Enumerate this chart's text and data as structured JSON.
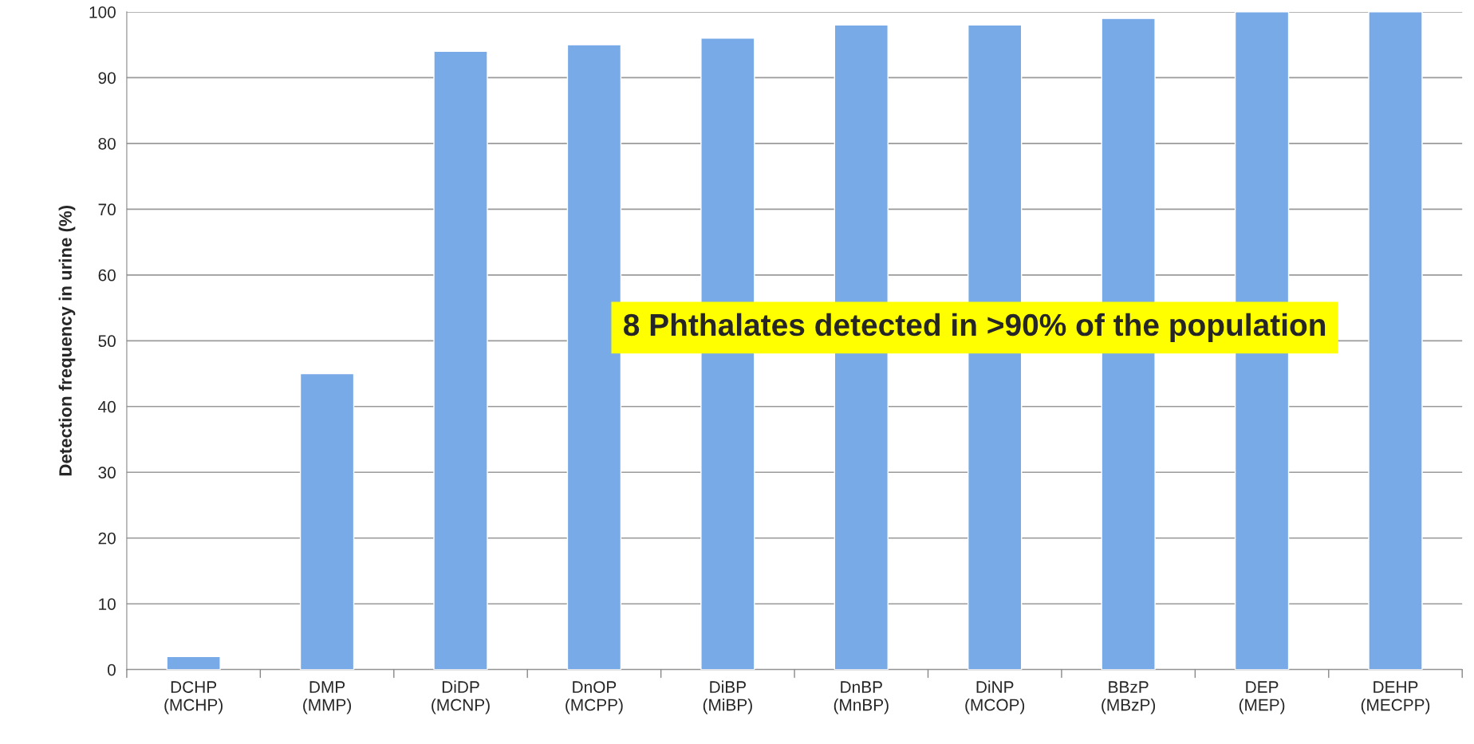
{
  "chart_data": {
    "type": "bar",
    "ylabel": "Detection frequency in urine (%)",
    "categories": [
      "DCHP\n(MCHP)",
      "DMP\n(MMP)",
      "DiDP\n(MCNP)",
      "DnOP\n(MCPP)",
      "DiBP\n(MiBP)",
      "DnBP\n(MnBP)",
      "DiNP\n(MCOP)",
      "BBzP\n(MBzP)",
      "DEP\n(MEP)",
      "DEHP\n(MECPP)"
    ],
    "values": [
      2,
      45,
      94,
      95,
      96,
      98,
      98,
      99,
      100,
      100
    ],
    "color": "#78aae8",
    "ylim": [
      0,
      100
    ],
    "yticks": [
      0,
      10,
      20,
      30,
      40,
      50,
      60,
      70,
      80,
      90,
      100
    ],
    "grid": "y",
    "annotations": [
      "8 Phthalates detected in >90% of the population"
    ]
  }
}
